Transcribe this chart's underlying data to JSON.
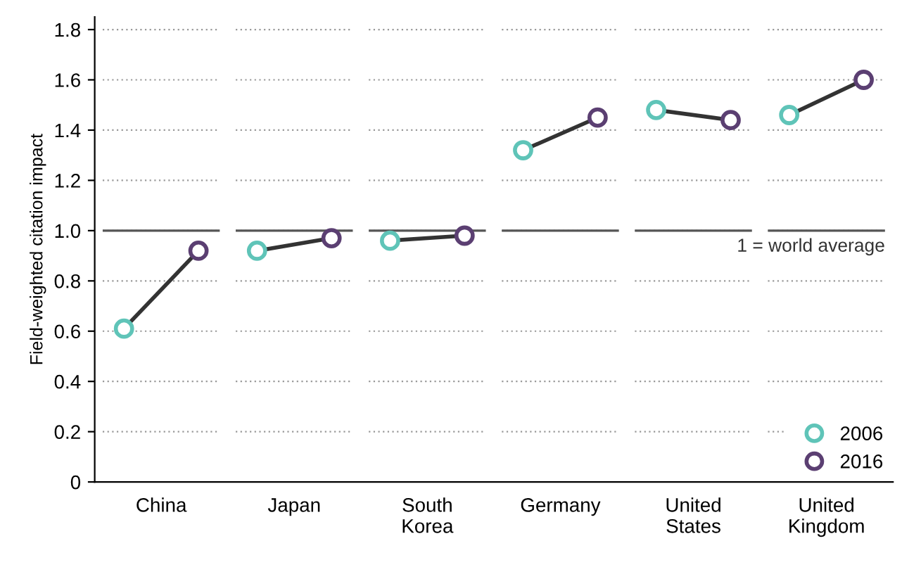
{
  "chart_data": {
    "type": "scatter",
    "ylabel": "Field-weighted citation impact",
    "categories": [
      "China",
      "Japan",
      "South\nKorea",
      "Germany",
      "United\nStates",
      "United\nKingdom"
    ],
    "series": [
      {
        "name": "2006",
        "color": "#5fc4b8",
        "values": [
          0.61,
          0.92,
          0.96,
          1.32,
          1.48,
          1.46
        ]
      },
      {
        "name": "2016",
        "color": "#5b3f72",
        "values": [
          0.92,
          0.97,
          0.98,
          1.45,
          1.44,
          1.6
        ]
      }
    ],
    "ylim": [
      0,
      1.85
    ],
    "yticks": [
      0,
      0.2,
      0.4,
      0.6,
      0.8,
      {
        "value": 1.0,
        "label": "1.0"
      },
      1.2,
      1.4,
      1.6,
      1.8
    ],
    "ref_lines": [
      {
        "axis": "y",
        "value": 1.0,
        "label": "1 = world average",
        "color": "#555555"
      }
    ],
    "grid": "y",
    "legend": "bottom right",
    "marker": "circle",
    "line_style": "solid"
  }
}
